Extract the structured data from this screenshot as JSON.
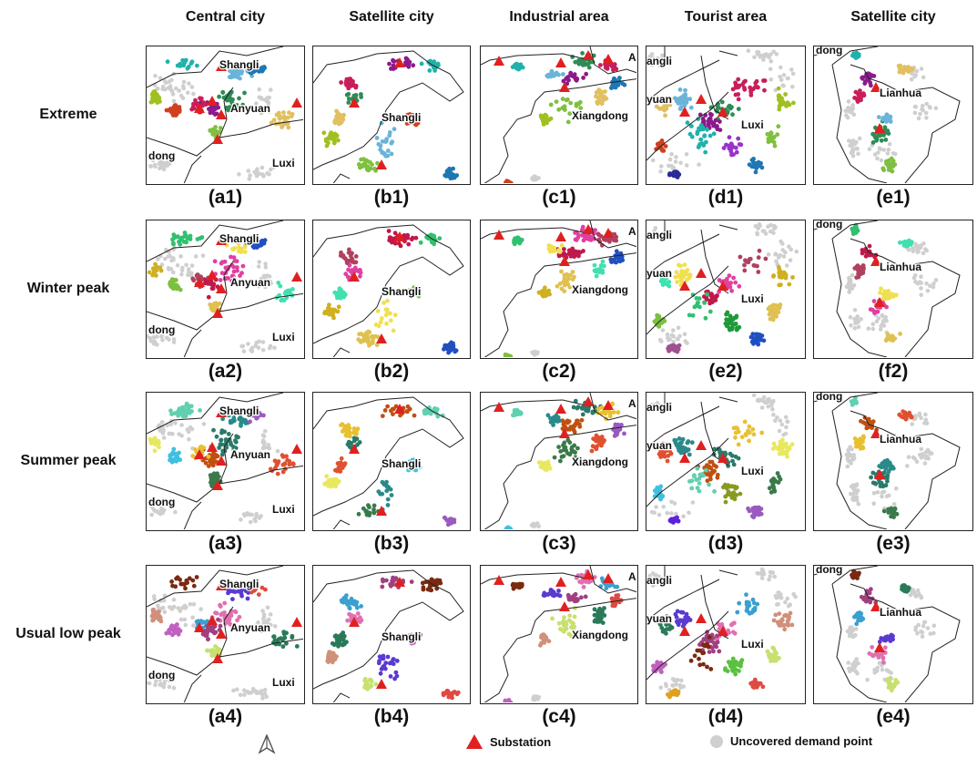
{
  "columns": [
    "Central city",
    "Satellite city",
    "Industrial area",
    "Tourist area",
    "Satellite city"
  ],
  "rows": [
    "Extreme",
    "Winter peak",
    "Summer peak",
    "Usual low peak"
  ],
  "panel_labels": [
    [
      "(a1)",
      "(b1)",
      "(c1)",
      "(d1)",
      "(e1)"
    ],
    [
      "(a2)",
      "(b2)",
      "(c2)",
      "(e2)",
      "(f2)"
    ],
    [
      "(a3)",
      "(b3)",
      "(c3)",
      "(d3)",
      "(e3)"
    ],
    [
      "(a4)",
      "(b4)",
      "(c4)",
      "(d4)",
      "(e4)"
    ]
  ],
  "place_labels": {
    "shangli": "Shangli",
    "anyuan": "Anyuan",
    "dong": "dong",
    "luxi": "Luxi",
    "xiangdong": "Xiangdong",
    "angli": "angli",
    "yuan": "yuan",
    "lianhua": "Lianhua",
    "a_cut": "A",
    "dong_cut": "dong"
  },
  "legend": {
    "north_icon": "north-arrow-icon",
    "substation": "Substation",
    "uncovered": "Uncovered demand point"
  },
  "colors": {
    "substation": "#e02020",
    "uncovered": "#cfcfcf",
    "row_palettes": [
      [
        "#2e8b57",
        "#8b1a8b",
        "#c81e5a",
        "#6ab4d8",
        "#20b2aa",
        "#e0c060",
        "#7fc040",
        "#a0c020",
        "#1f77b4",
        "#d04020",
        "#9932cc",
        "#2a2a9a"
      ],
      [
        "#7cc040",
        "#1e9a3a",
        "#a05090",
        "#e040a0",
        "#c0184a",
        "#b04060",
        "#f0e050",
        "#30c070",
        "#40e0b0",
        "#e0c050",
        "#d0b020",
        "#2050c0"
      ],
      [
        "#3a7a4a",
        "#e8e860",
        "#9a5ac0",
        "#40c0e0",
        "#8a9a20",
        "#6020e0",
        "#2a7a6a",
        "#c05010",
        "#e8c030",
        "#2a8a8a",
        "#60d0b0",
        "#e05030"
      ],
      [
        "#5a3ad0",
        "#7a2a10",
        "#2a7a5a",
        "#c8e070",
        "#d0907a",
        "#e04a40",
        "#c060c0",
        "#5ac040",
        "#e0a020",
        "#e070b0",
        "#a04080",
        "#3aa0d0"
      ]
    ]
  }
}
